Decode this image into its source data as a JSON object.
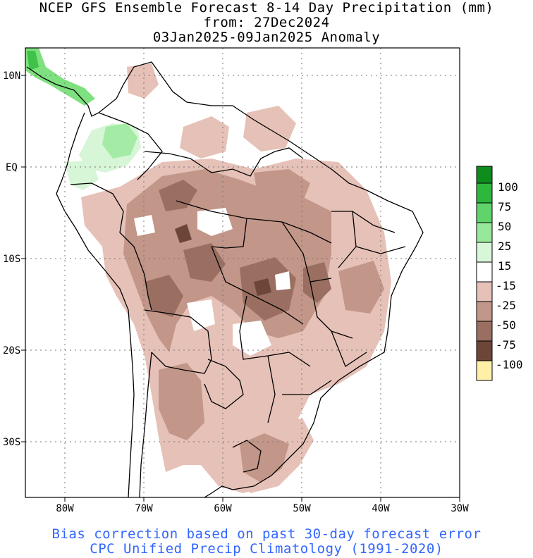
{
  "title": {
    "line1": "NCEP GFS Ensemble Forecast 8-14 Day Precipitation (mm)",
    "line2": "from: 27Dec2024",
    "line3": "03Jan2025-09Jan2025 Anomaly"
  },
  "footer": {
    "line1": "Bias correction based on past 30-day forecast error",
    "line2": "CPC Unified Precip Climatology (1991-2020)",
    "color": "#3366ff"
  },
  "map": {
    "lon_range": [
      -85,
      -30
    ],
    "lat_range": [
      -36,
      13
    ],
    "gridlines": "dotted",
    "lat_labels": [
      "10N",
      "EQ",
      "10S",
      "20S",
      "30S"
    ],
    "lon_labels": [
      "80W",
      "70W",
      "60W",
      "50W",
      "40W",
      "30W"
    ]
  },
  "legend": {
    "labels": [
      "100",
      "75",
      "50",
      "25",
      "15",
      "-15",
      "-25",
      "-50",
      "-75",
      "-100"
    ],
    "colors": [
      "#0f8c1e",
      "#2db83d",
      "#5fd46a",
      "#98e89b",
      "#d8f7d8",
      "#ffffff",
      "#e6c1b7",
      "#c29688",
      "#9a6f62",
      "#6e4639",
      "#4a2a20",
      "#fff0a8"
    ]
  }
}
